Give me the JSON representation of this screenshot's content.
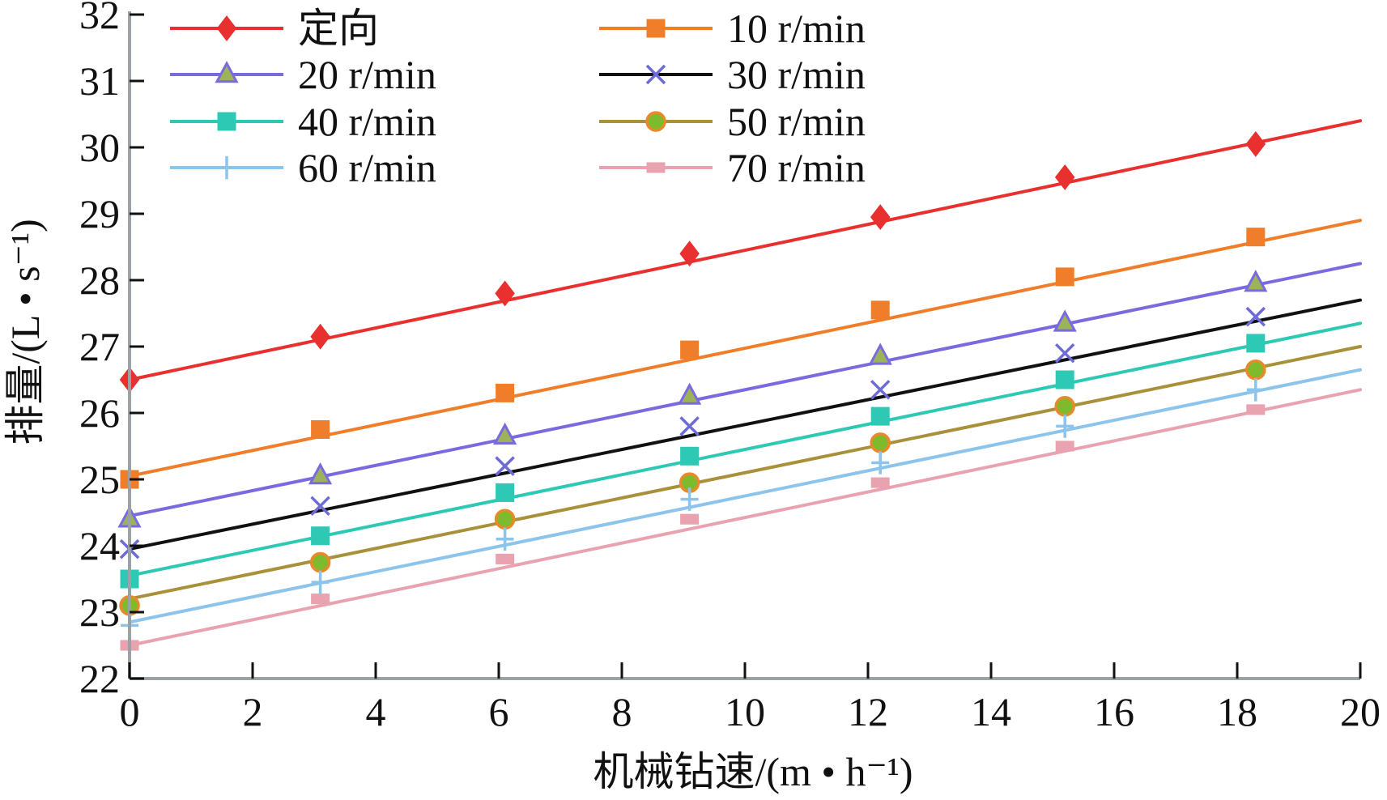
{
  "chart_data": {
    "type": "line",
    "title": "",
    "xlabel": "机械钻速/(m • h⁻¹)",
    "ylabel": "排量/(L • s⁻¹)",
    "xlim": [
      0,
      20
    ],
    "ylim": [
      22,
      32
    ],
    "xticks": [
      "0",
      "2",
      "4",
      "6",
      "8",
      "10",
      "12",
      "14",
      "16",
      "18",
      "20"
    ],
    "yticks": [
      "22",
      "23",
      "24",
      "25",
      "26",
      "27",
      "28",
      "29",
      "30",
      "31",
      "32"
    ],
    "grid": false,
    "legend_position": "top-left",
    "legend_columns": 2,
    "series": [
      {
        "name": "定向",
        "color": "#e8302f",
        "marker": "diamond",
        "x": [
          0,
          3.1,
          6.1,
          9.1,
          12.2,
          15.2,
          18.3
        ],
        "y": [
          26.5,
          27.15,
          27.8,
          28.4,
          28.95,
          29.55,
          30.05
        ],
        "line_start": 26.5,
        "line_end": 30.4
      },
      {
        "name": "10 r/min",
        "color": "#f07d2a",
        "marker": "square",
        "x": [
          0,
          3.1,
          6.1,
          9.1,
          12.2,
          15.2,
          18.3
        ],
        "y": [
          25.0,
          25.75,
          26.3,
          26.95,
          27.55,
          28.05,
          28.65
        ],
        "line_start": 25.05,
        "line_end": 28.9
      },
      {
        "name": "20 r/min",
        "color": "#7a6ae0",
        "marker": "triangle",
        "x": [
          0,
          3.1,
          6.1,
          9.1,
          12.2,
          15.2,
          18.3
        ],
        "y": [
          24.4,
          25.05,
          25.65,
          26.25,
          26.85,
          27.35,
          27.95
        ],
        "line_start": 24.45,
        "line_end": 28.25
      },
      {
        "name": "30 r/min",
        "color": "#111111",
        "marker": "x",
        "x": [
          0,
          3.1,
          6.1,
          9.1,
          12.2,
          15.2,
          18.3
        ],
        "y": [
          23.95,
          24.6,
          25.2,
          25.8,
          26.35,
          26.9,
          27.45
        ],
        "line_start": 23.95,
        "line_end": 27.7
      },
      {
        "name": "40 r/min",
        "color": "#2ec9b5",
        "marker": "square",
        "x": [
          0,
          3.1,
          6.1,
          9.1,
          12.2,
          15.2,
          18.3
        ],
        "y": [
          23.5,
          24.15,
          24.8,
          25.35,
          25.95,
          26.5,
          27.05
        ],
        "line_start": 23.55,
        "line_end": 27.35
      },
      {
        "name": "50 r/min",
        "color": "#a8913a",
        "marker": "circle",
        "x": [
          0,
          3.1,
          6.1,
          9.1,
          12.2,
          15.2,
          18.3
        ],
        "y": [
          23.1,
          23.75,
          24.4,
          24.95,
          25.55,
          26.1,
          26.65
        ],
        "line_start": 23.2,
        "line_end": 27.0
      },
      {
        "name": "60 r/min",
        "color": "#8cc4ec",
        "marker": "plus",
        "x": [
          0,
          3.1,
          6.1,
          9.1,
          12.2,
          15.2,
          18.3
        ],
        "y": [
          22.8,
          23.45,
          24.1,
          24.7,
          25.25,
          25.8,
          26.35
        ],
        "line_start": 22.85,
        "line_end": 26.65
      },
      {
        "name": "70 r/min",
        "color": "#e9a3b0",
        "marker": "dash",
        "x": [
          0,
          3.1,
          6.1,
          9.1,
          12.2,
          15.2,
          18.3
        ],
        "y": [
          22.5,
          23.2,
          23.8,
          24.4,
          24.95,
          25.5,
          26.05
        ],
        "line_start": 22.5,
        "line_end": 26.35
      }
    ]
  }
}
